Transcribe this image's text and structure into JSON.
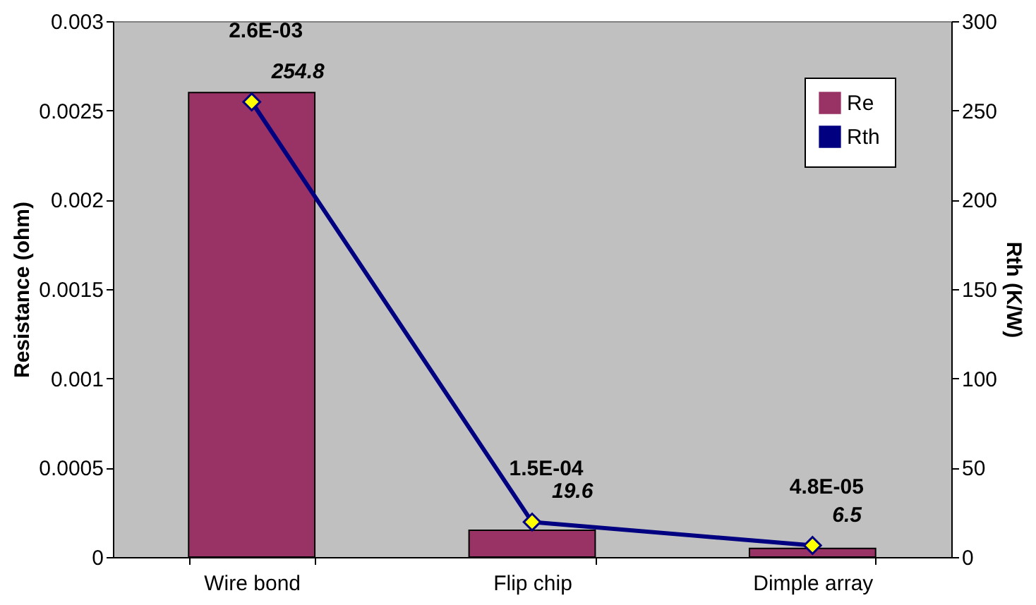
{
  "chart_data": {
    "type": "bar",
    "categories": [
      "Wire bond",
      "Flip chip",
      "Dimple array"
    ],
    "ylabel": "Resistance (ohm)",
    "y2label": "Rth (K/W)",
    "series": [
      {
        "name": "Re",
        "color": "#993366",
        "values": [
          0.0026,
          0.00015,
          4.8e-05
        ],
        "value_labels": [
          "2.6E-03",
          "1.5E-04",
          "4.8E-05"
        ]
      },
      {
        "name": "Rth",
        "type": "line",
        "axis": "y2",
        "color": "#000080",
        "marker": "diamond",
        "values": [
          254.8,
          19.6,
          6.5
        ],
        "value_labels": [
          "254.8",
          "19.6",
          "6.5"
        ]
      }
    ],
    "ylim": [
      0,
      0.003
    ],
    "yticks": [
      0,
      0.0005,
      0.001,
      0.0015,
      0.002,
      0.0025,
      0.003
    ],
    "y2lim": [
      0,
      300
    ],
    "y2ticks": [
      0,
      50,
      100,
      150,
      200,
      250,
      300
    ],
    "grid": false,
    "legend": "top right"
  }
}
